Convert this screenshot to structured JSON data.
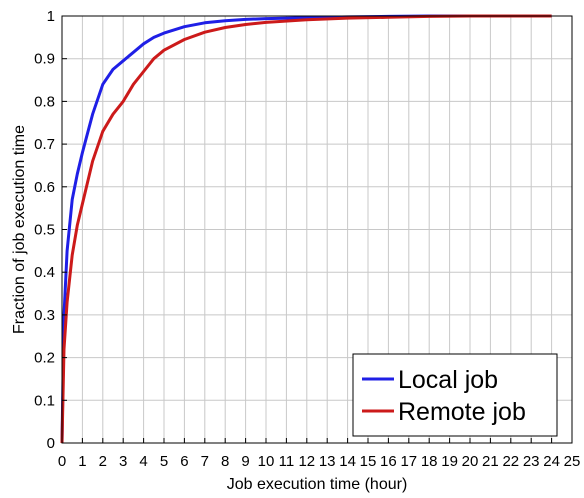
{
  "chart_data": {
    "type": "line",
    "title": "",
    "xlabel": "Job execution time (hour)",
    "ylabel": "Fraction of job execution time",
    "xlim": [
      0,
      25
    ],
    "ylim": [
      0,
      1
    ],
    "xticks": [
      0,
      1,
      2,
      3,
      4,
      5,
      6,
      7,
      8,
      9,
      10,
      11,
      12,
      13,
      14,
      15,
      16,
      17,
      18,
      19,
      20,
      21,
      22,
      23,
      24,
      25
    ],
    "yticks": [
      0,
      0.1,
      0.2,
      0.3,
      0.4,
      0.5,
      0.6,
      0.7,
      0.8,
      0.9,
      1
    ],
    "ytick_labels": [
      "0",
      "0.1",
      "0.2",
      "0.3",
      "0.4",
      "0.5",
      "0.6",
      "0.7",
      "0.8",
      "0.9",
      "1"
    ],
    "grid": true,
    "legend_position": "bottom-right",
    "series": [
      {
        "name": "Local job",
        "color": "#1f1fe6",
        "x": [
          0,
          0.1,
          0.25,
          0.5,
          0.75,
          1,
          1.5,
          2,
          2.5,
          3,
          3.5,
          4,
          4.5,
          5,
          6,
          7,
          8,
          9,
          10,
          12,
          14,
          16,
          18,
          20,
          22,
          24
        ],
        "y": [
          0,
          0.3,
          0.45,
          0.57,
          0.63,
          0.68,
          0.77,
          0.84,
          0.875,
          0.895,
          0.915,
          0.935,
          0.95,
          0.96,
          0.975,
          0.984,
          0.989,
          0.992,
          0.994,
          0.996,
          0.998,
          0.999,
          1,
          1,
          1,
          1
        ]
      },
      {
        "name": "Remote job",
        "color": "#cc1a1a",
        "x": [
          0,
          0.1,
          0.25,
          0.5,
          0.75,
          1,
          1.5,
          2,
          2.5,
          3,
          3.5,
          4,
          4.5,
          5,
          6,
          7,
          8,
          9,
          10,
          12,
          14,
          16,
          18,
          20,
          22,
          24
        ],
        "y": [
          0,
          0.22,
          0.33,
          0.44,
          0.51,
          0.56,
          0.66,
          0.73,
          0.77,
          0.8,
          0.84,
          0.87,
          0.9,
          0.92,
          0.945,
          0.962,
          0.973,
          0.98,
          0.985,
          0.991,
          0.995,
          0.997,
          0.999,
          1,
          1,
          1
        ]
      }
    ]
  }
}
